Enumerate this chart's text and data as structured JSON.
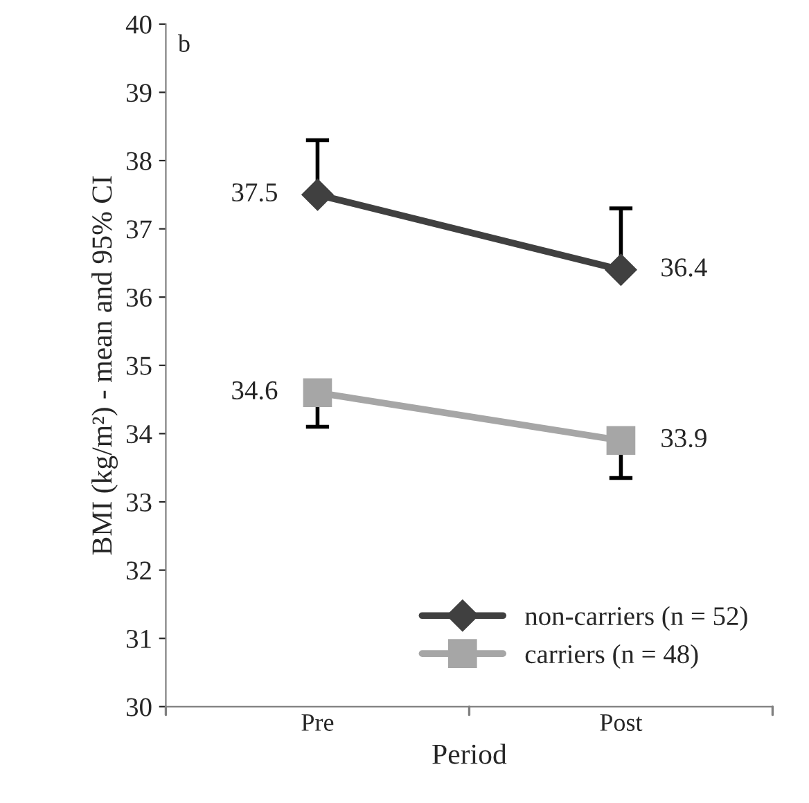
{
  "chart_data": {
    "type": "line",
    "xlabel": "Period",
    "ylabel": "BMI (kg/m²) - mean and 95% CI",
    "categories": [
      "Pre",
      "Post"
    ],
    "series": [
      {
        "name": "non-carriers (n = 52)",
        "color": "#404040",
        "marker": "diamond",
        "values": [
          37.5,
          36.4
        ],
        "errors": [
          [
            37.5,
            38.3
          ],
          [
            36.4,
            37.3
          ]
        ]
      },
      {
        "name": "carriers (n = 48)",
        "color": "#a6a6a6",
        "marker": "square",
        "values": [
          34.6,
          33.9
        ],
        "errors": [
          [
            34.1,
            34.6
          ],
          [
            33.35,
            33.9
          ]
        ]
      }
    ],
    "ylim": [
      30,
      40
    ],
    "yticks": [
      30,
      31,
      32,
      33,
      34,
      35,
      36,
      37,
      38,
      39,
      40
    ],
    "grid": false,
    "legend": "bottom right",
    "data_labels": true,
    "annotations": [
      "b"
    ]
  }
}
